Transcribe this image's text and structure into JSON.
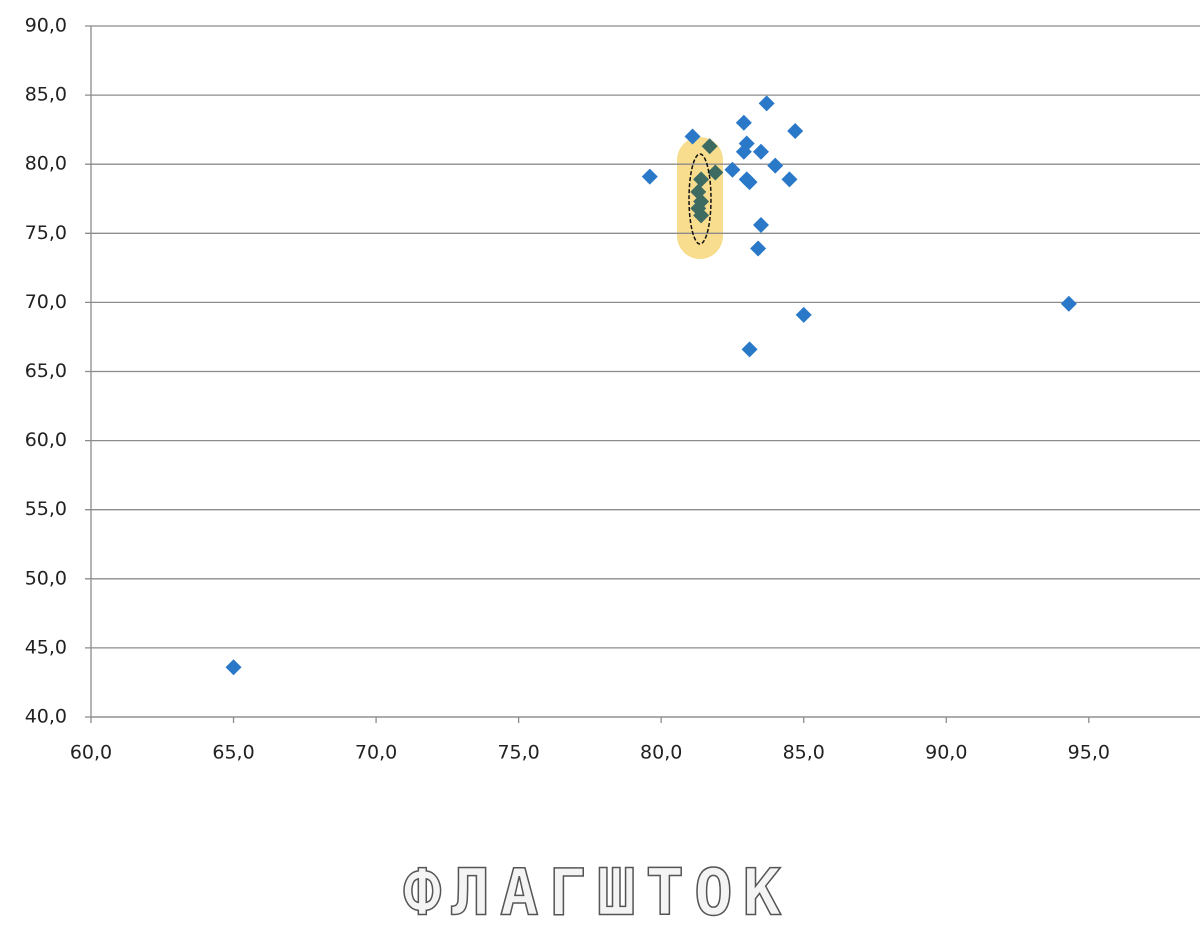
{
  "chart_data": {
    "type": "scatter",
    "xlim": [
      60,
      98.9
    ],
    "ylim": [
      40,
      90
    ],
    "xticks": [
      {
        "value": 60,
        "label": "60,0"
      },
      {
        "value": 65,
        "label": "65,0"
      },
      {
        "value": 70,
        "label": "70,0"
      },
      {
        "value": 75,
        "label": "75,0"
      },
      {
        "value": 80,
        "label": "80,0"
      },
      {
        "value": 85,
        "label": "85,0"
      },
      {
        "value": 90,
        "label": "90,0"
      },
      {
        "value": 95,
        "label": "95,0"
      }
    ],
    "yticks": [
      {
        "value": 40,
        "label": "40,0"
      },
      {
        "value": 45,
        "label": "45,0"
      },
      {
        "value": 50,
        "label": "50,0"
      },
      {
        "value": 55,
        "label": "55,0"
      },
      {
        "value": 60,
        "label": "60,0"
      },
      {
        "value": 65,
        "label": "65,0"
      },
      {
        "value": 70,
        "label": "70,0"
      },
      {
        "value": 75,
        "label": "75,0"
      },
      {
        "value": 80,
        "label": "80,0"
      },
      {
        "value": 85,
        "label": "85,0"
      },
      {
        "value": 90,
        "label": "90,0"
      }
    ],
    "grid": true,
    "series": [
      {
        "color": "#2a78c8",
        "x": [
          65.0,
          79.6,
          81.1,
          82.5,
          82.9,
          83.0,
          82.9,
          83.0,
          83.1,
          83.5,
          83.7,
          84.0,
          84.5,
          84.7,
          83.5,
          83.4,
          85.0,
          83.1,
          94.3
        ],
        "values": [
          43.6,
          79.1,
          82.0,
          79.6,
          83.0,
          81.5,
          80.9,
          78.9,
          78.7,
          80.9,
          84.4,
          79.9,
          78.9,
          82.4,
          75.6,
          73.9,
          69.1,
          66.6,
          69.9
        ]
      },
      {
        "color": "#3d6b62",
        "x": [
          81.7,
          81.9,
          81.4,
          81.3,
          81.4,
          81.3,
          81.4
        ],
        "values": [
          81.3,
          79.4,
          78.9,
          78.0,
          77.3,
          76.8,
          76.3
        ]
      }
    ],
    "watermark": "ФЛАГШТОК"
  }
}
